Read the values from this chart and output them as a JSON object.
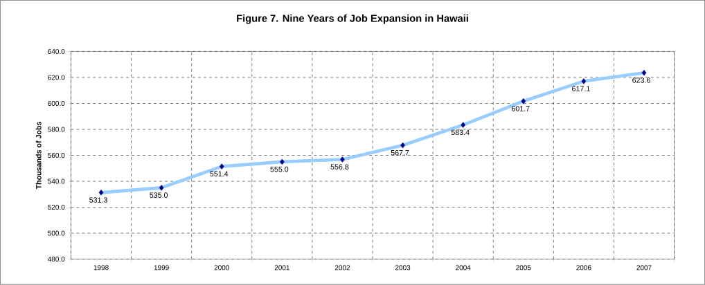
{
  "chart_data": {
    "type": "line",
    "title": "Figure 7. Nine Years of Job Expansion in Hawaii",
    "ylabel": "Thousands of Jobs",
    "categories": [
      "1998",
      "1999",
      "2000",
      "2001",
      "2002",
      "2003",
      "2004",
      "2005",
      "2006",
      "2007"
    ],
    "series": [
      {
        "color": "#99ccff",
        "colors": [
          "#000080",
          "#000080",
          "#000080",
          "#000080",
          "#000080",
          "#000080",
          "#000080",
          "#000080",
          "#000080",
          "#000080"
        ],
        "values": [
          531.3,
          535.0,
          551.4,
          555.0,
          556.8,
          567.7,
          583.4,
          601.7,
          617.1,
          623.6
        ],
        "value_labels": [
          "531.3",
          "535.0",
          "551.4",
          "555.0",
          "556.8",
          "567.7",
          "583.4",
          "601.7",
          "617.1",
          "623.6"
        ]
      }
    ],
    "ylim": [
      480,
      640
    ],
    "yticks": [
      {
        "value": 480,
        "label": "480.0"
      },
      {
        "value": 500,
        "label": "500.0"
      },
      {
        "value": 520,
        "label": "520.0"
      },
      {
        "value": 540,
        "label": "540.0"
      },
      {
        "value": 560,
        "label": "560.0"
      },
      {
        "value": 580,
        "label": "580.0"
      },
      {
        "value": 600,
        "label": "600.0"
      },
      {
        "value": 620,
        "label": "620.0"
      },
      {
        "value": 640,
        "label": "640.0"
      }
    ],
    "grid": true,
    "marker": "diamond",
    "line_style": "solid"
  }
}
